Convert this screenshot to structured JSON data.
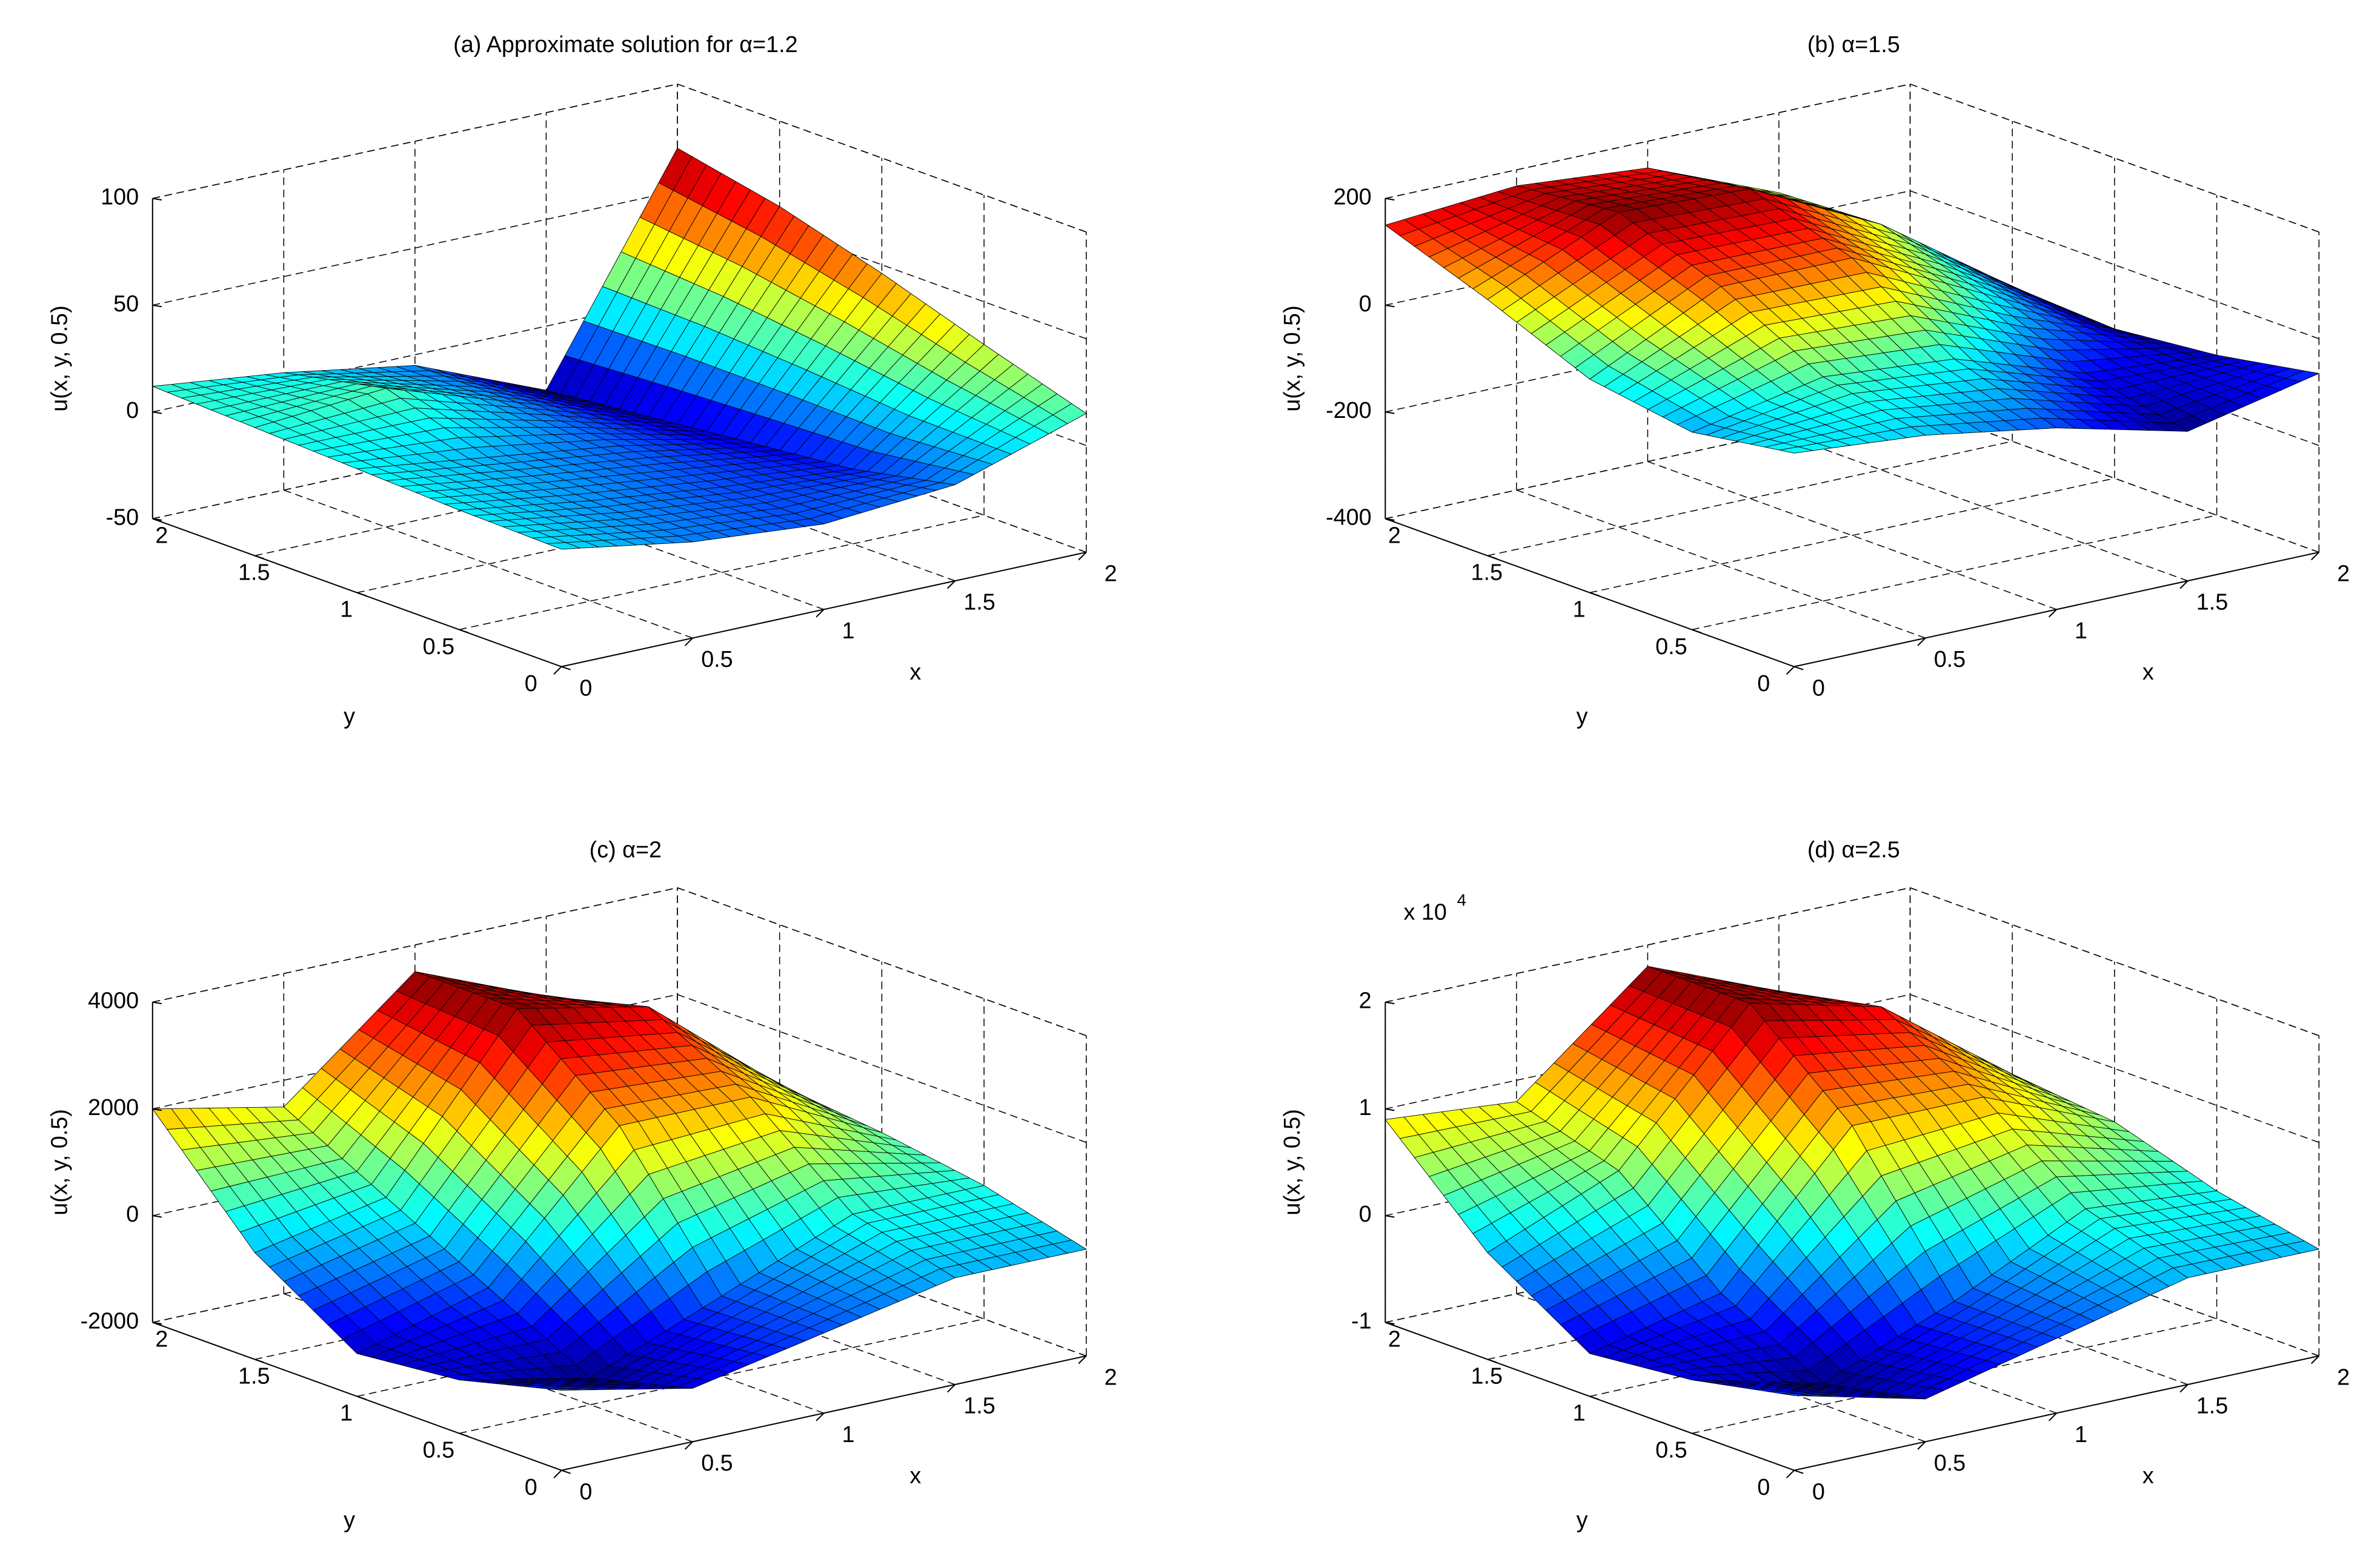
{
  "chart_data": [
    {
      "type": "surface",
      "title": "(a) Approximate solution for α=1.2",
      "xlabel": "x",
      "ylabel": "y",
      "zlabel": "u(x, y, 0.5)",
      "colormap": "jet",
      "grid": true,
      "x": [
        0,
        0.5,
        1,
        1.5,
        2
      ],
      "y": [
        0,
        0.5,
        1,
        1.5,
        2
      ],
      "z": [
        [
          5,
          -5,
          -10,
          -5,
          15
        ],
        [
          6,
          -3,
          -10,
          -15,
          30
        ],
        [
          8,
          0,
          -8,
          -20,
          46
        ],
        [
          10,
          15,
          -5,
          -25,
          60
        ],
        [
          12,
          5,
          -5,
          -30,
          70
        ]
      ],
      "xlim": [
        0,
        2
      ],
      "xticks": [
        0,
        0.5,
        1,
        1.5,
        2
      ],
      "ylim": [
        0,
        2
      ],
      "yticks": [
        0,
        0.5,
        1,
        1.5,
        2
      ],
      "zlim": [
        -50,
        100
      ],
      "zticks": [
        -50,
        0,
        50,
        100
      ]
    },
    {
      "type": "surface",
      "title": "(b) α=1.5",
      "xlabel": "x",
      "ylabel": "y",
      "zlabel": "u(x, y, 0.5)",
      "colormap": "jet",
      "grid": true,
      "x": [
        0,
        0.5,
        1,
        1.5,
        2
      ],
      "y": [
        0,
        0.5,
        1,
        1.5,
        2
      ],
      "z": [
        [
          0,
          -20,
          -60,
          -120,
          -65
        ],
        [
          -30,
          20,
          0,
          -80,
          -100
        ],
        [
          0,
          120,
          120,
          0,
          -120
        ],
        [
          80,
          190,
          180,
          60,
          -110
        ],
        [
          150,
          170,
          150,
          50,
          -90
        ]
      ],
      "xlim": [
        0,
        2
      ],
      "xticks": [
        0,
        0.5,
        1,
        1.5,
        2
      ],
      "ylim": [
        0,
        2
      ],
      "yticks": [
        0,
        0.5,
        1,
        1.5,
        2
      ],
      "zlim": [
        -400,
        200
      ],
      "zticks": [
        -400,
        -200,
        0,
        200
      ]
    },
    {
      "type": "surface",
      "title": "(c) α=2",
      "xlabel": "x",
      "ylabel": "y",
      "zlabel": "u(x, y, 0.5)",
      "colormap": "jet",
      "grid": true,
      "x": [
        0,
        0.5,
        1,
        1.5,
        2
      ],
      "y": [
        0,
        0.5,
        1,
        1.5,
        2
      ],
      "z": [
        [
          -500,
          -1000,
          -500,
          0,
          0
        ],
        [
          -1000,
          -1500,
          -500,
          500,
          500
        ],
        [
          -1200,
          -500,
          2000,
          2000,
          800
        ],
        [
          0,
          500,
          3500,
          3000,
          1000
        ],
        [
          2000,
          1500,
          3500,
          2500,
          800
        ]
      ],
      "xlim": [
        0,
        2
      ],
      "xticks": [
        0,
        0.5,
        1,
        1.5,
        2
      ],
      "ylim": [
        0,
        2
      ],
      "yticks": [
        0,
        0.5,
        1,
        1.5,
        2
      ],
      "zlim": [
        -2000,
        4000
      ],
      "zticks": [
        -2000,
        0,
        2000,
        4000
      ]
    },
    {
      "type": "surface",
      "title": "(d) α=2.5",
      "xlabel": "x",
      "ylabel": "y",
      "zlabel": "u(x, y, 0.5)",
      "colormap": "jet",
      "grid": true,
      "z_multiplier": {
        "base": "x 10",
        "exponent": "4"
      },
      "x": [
        0,
        0.5,
        1,
        1.5,
        2
      ],
      "y": [
        0,
        0.5,
        1,
        1.5,
        2
      ],
      "z": [
        [
          -0.3,
          -0.6,
          -0.3,
          0,
          0
        ],
        [
          -0.5,
          -0.8,
          -0.3,
          0.3,
          0.2
        ],
        [
          -0.6,
          -0.3,
          1.0,
          1.0,
          0.5
        ],
        [
          0,
          0.5,
          1.8,
          1.5,
          0.6
        ],
        [
          0.9,
          0.8,
          1.8,
          1.3,
          0.5
        ]
      ],
      "xlim": [
        0,
        2
      ],
      "xticks": [
        0,
        0.5,
        1,
        1.5,
        2
      ],
      "ylim": [
        0,
        2
      ],
      "yticks": [
        0,
        0.5,
        1,
        1.5,
        2
      ],
      "zlim": [
        -1,
        2
      ],
      "zticks": [
        -1,
        0,
        1,
        2
      ]
    }
  ]
}
